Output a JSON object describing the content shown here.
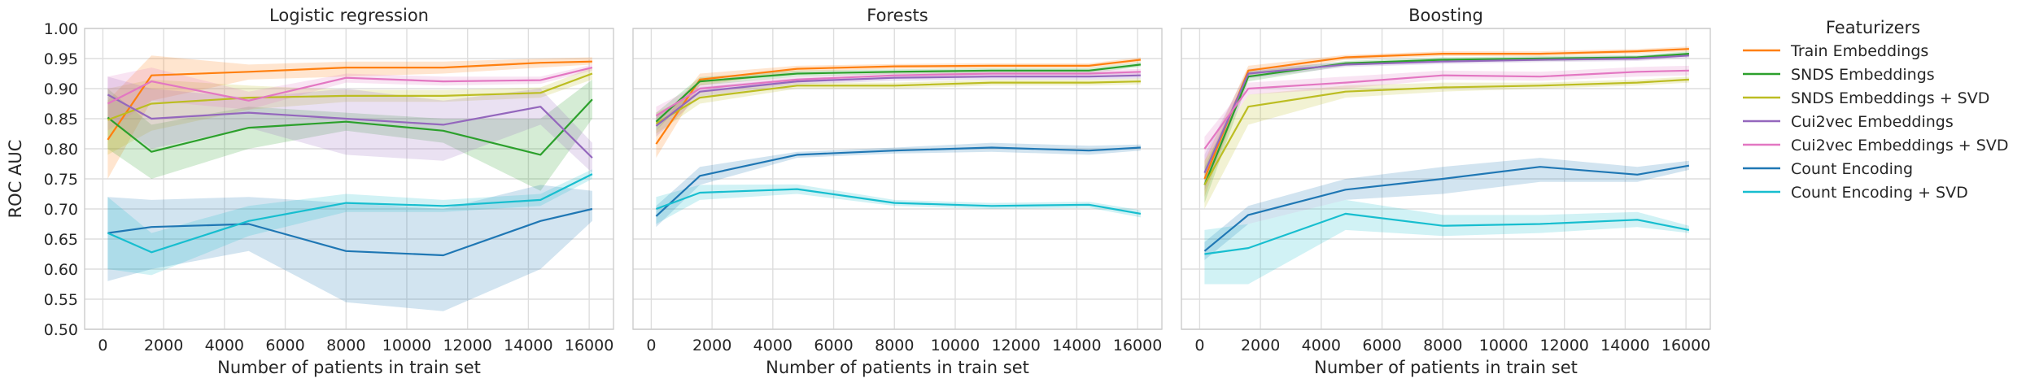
{
  "chart_data": {
    "type": "line",
    "ylabel": "ROC AUC",
    "ylim": [
      0.5,
      1.0
    ],
    "xlim": [
      -600,
      16800
    ],
    "xticks": [
      0,
      2000,
      4000,
      6000,
      8000,
      10000,
      12000,
      14000,
      16000
    ],
    "xtick_labels": [
      "0",
      "2000",
      "4000",
      "6000",
      "8000",
      "10000",
      "12000",
      "14000",
      "16000"
    ],
    "yticks": [
      0.5,
      0.55,
      0.6,
      0.65,
      0.7,
      0.75,
      0.8,
      0.85,
      0.9,
      0.95,
      1.0
    ],
    "ytick_labels": [
      "0.50",
      "0.55",
      "0.60",
      "0.65",
      "0.70",
      "0.75",
      "0.80",
      "0.85",
      "0.90",
      "0.95",
      "1.00"
    ],
    "grid": true,
    "legend": {
      "title": "Featurizers",
      "placement": "right outside",
      "entries": [
        {
          "name": "Train Embeddings",
          "color": "#ff7f0e"
        },
        {
          "name": "SNDS Embeddings",
          "color": "#2ca02c"
        },
        {
          "name": "SNDS Embeddings + SVD",
          "color": "#bcbd22"
        },
        {
          "name": "Cui2vec Embeddings",
          "color": "#9467bd"
        },
        {
          "name": "Cui2vec Embeddings + SVD",
          "color": "#e377c2"
        },
        {
          "name": "Count Encoding",
          "color": "#1f77b4"
        },
        {
          "name": "Count Encoding + SVD",
          "color": "#17becf"
        }
      ]
    },
    "panels": [
      {
        "title": "Logistic regression",
        "xlabel": "Number of patients in train set",
        "x": [
          160,
          1600,
          4800,
          8000,
          11200,
          14400,
          16100
        ],
        "series": [
          {
            "name": "Train Embeddings",
            "values": [
              0.815,
              0.922,
              0.928,
              0.935,
              0.935,
              0.943,
              0.945
            ],
            "lower": [
              0.75,
              0.88,
              0.915,
              0.92,
              0.925,
              0.935,
              0.94
            ],
            "upper": [
              0.88,
              0.955,
              0.94,
              0.945,
              0.945,
              0.95,
              0.952
            ]
          },
          {
            "name": "SNDS Embeddings",
            "values": [
              0.852,
              0.795,
              0.835,
              0.845,
              0.83,
              0.79,
              0.882
            ],
            "lower": [
              0.8,
              0.75,
              0.8,
              0.83,
              0.81,
              0.73,
              0.85
            ],
            "upper": [
              0.9,
              0.84,
              0.87,
              0.86,
              0.85,
              0.85,
              0.915
            ]
          },
          {
            "name": "SNDS Embeddings + SVD",
            "values": [
              0.848,
              0.875,
              0.885,
              0.888,
              0.888,
              0.893,
              0.925
            ],
            "lower": [
              0.79,
              0.83,
              0.865,
              0.878,
              0.878,
              0.885,
              0.915
            ],
            "upper": [
              0.9,
              0.915,
              0.905,
              0.898,
              0.898,
              0.902,
              0.935
            ]
          },
          {
            "name": "Cui2vec Embeddings",
            "values": [
              0.89,
              0.85,
              0.86,
              0.85,
              0.84,
              0.87,
              0.785
            ],
            "lower": [
              0.85,
              0.8,
              0.835,
              0.79,
              0.78,
              0.84,
              0.76
            ],
            "upper": [
              0.92,
              0.9,
              0.885,
              0.9,
              0.88,
              0.9,
              0.81
            ]
          },
          {
            "name": "Cui2vec Embeddings + SVD",
            "values": [
              0.875,
              0.912,
              0.88,
              0.918,
              0.912,
              0.914,
              0.935
            ],
            "lower": [
              0.83,
              0.88,
              0.865,
              0.91,
              0.905,
              0.908,
              0.93
            ],
            "upper": [
              0.92,
              0.935,
              0.895,
              0.925,
              0.92,
              0.92,
              0.94
            ]
          },
          {
            "name": "Count Encoding",
            "values": [
              0.66,
              0.67,
              0.675,
              0.63,
              0.623,
              0.68,
              0.7
            ],
            "lower": [
              0.58,
              0.6,
              0.63,
              0.545,
              0.53,
              0.6,
              0.68
            ],
            "upper": [
              0.72,
              0.715,
              0.72,
              0.71,
              0.7,
              0.74,
              0.73
            ]
          },
          {
            "name": "Count Encoding + SVD",
            "values": [
              0.66,
              0.628,
              0.68,
              0.71,
              0.705,
              0.715,
              0.758
            ],
            "lower": [
              0.6,
              0.59,
              0.655,
              0.695,
              0.695,
              0.705,
              0.75
            ],
            "upper": [
              0.72,
              0.66,
              0.705,
              0.725,
              0.715,
              0.725,
              0.766
            ]
          }
        ]
      },
      {
        "title": "Forests",
        "xlabel": "Number of patients in train set",
        "x": [
          160,
          1600,
          4800,
          8000,
          11200,
          14400,
          16100
        ],
        "series": [
          {
            "name": "Train Embeddings",
            "values": [
              0.808,
              0.915,
              0.933,
              0.937,
              0.938,
              0.938,
              0.948
            ],
            "lower": [
              0.785,
              0.905,
              0.928,
              0.933,
              0.934,
              0.934,
              0.944
            ],
            "upper": [
              0.83,
              0.925,
              0.938,
              0.941,
              0.942,
              0.942,
              0.952
            ]
          },
          {
            "name": "SNDS Embeddings",
            "values": [
              0.845,
              0.912,
              0.925,
              0.928,
              0.93,
              0.93,
              0.94
            ],
            "lower": [
              0.83,
              0.905,
              0.92,
              0.924,
              0.926,
              0.926,
              0.936
            ],
            "upper": [
              0.86,
              0.919,
              0.93,
              0.932,
              0.934,
              0.934,
              0.944
            ]
          },
          {
            "name": "SNDS Embeddings + SVD",
            "values": [
              0.842,
              0.885,
              0.905,
              0.905,
              0.91,
              0.91,
              0.912
            ],
            "lower": [
              0.825,
              0.875,
              0.9,
              0.9,
              0.905,
              0.905,
              0.907
            ],
            "upper": [
              0.86,
              0.895,
              0.91,
              0.91,
              0.915,
              0.915,
              0.917
            ]
          },
          {
            "name": "Cui2vec Embeddings",
            "values": [
              0.838,
              0.895,
              0.912,
              0.918,
              0.92,
              0.92,
              0.922
            ],
            "lower": [
              0.82,
              0.887,
              0.907,
              0.913,
              0.915,
              0.915,
              0.917
            ],
            "upper": [
              0.855,
              0.903,
              0.917,
              0.923,
              0.925,
              0.925,
              0.927
            ]
          },
          {
            "name": "Cui2vec Embeddings + SVD",
            "values": [
              0.855,
              0.9,
              0.915,
              0.922,
              0.925,
              0.925,
              0.928
            ],
            "lower": [
              0.84,
              0.893,
              0.91,
              0.917,
              0.92,
              0.92,
              0.923
            ],
            "upper": [
              0.87,
              0.907,
              0.92,
              0.927,
              0.93,
              0.93,
              0.933
            ]
          },
          {
            "name": "Count Encoding",
            "values": [
              0.688,
              0.755,
              0.79,
              0.797,
              0.802,
              0.797,
              0.802
            ],
            "lower": [
              0.67,
              0.74,
              0.785,
              0.792,
              0.795,
              0.79,
              0.797
            ],
            "upper": [
              0.705,
              0.77,
              0.795,
              0.802,
              0.81,
              0.805,
              0.807
            ]
          },
          {
            "name": "Count Encoding + SVD",
            "values": [
              0.7,
              0.727,
              0.733,
              0.71,
              0.705,
              0.707,
              0.692
            ],
            "lower": [
              0.675,
              0.715,
              0.725,
              0.705,
              0.7,
              0.702,
              0.686
            ],
            "upper": [
              0.72,
              0.74,
              0.741,
              0.715,
              0.71,
              0.712,
              0.698
            ]
          }
        ]
      },
      {
        "title": "Boosting",
        "xlabel": "Number of patients in train set",
        "x": [
          160,
          1600,
          4800,
          8000,
          11200,
          14400,
          16100
        ],
        "series": [
          {
            "name": "Train Embeddings",
            "values": [
              0.75,
              0.93,
              0.952,
              0.958,
              0.958,
              0.962,
              0.966
            ],
            "lower": [
              0.72,
              0.922,
              0.948,
              0.954,
              0.954,
              0.958,
              0.962
            ],
            "upper": [
              0.78,
              0.938,
              0.956,
              0.962,
              0.962,
              0.966,
              0.97
            ]
          },
          {
            "name": "SNDS Embeddings",
            "values": [
              0.74,
              0.92,
              0.942,
              0.948,
              0.95,
              0.952,
              0.958
            ],
            "lower": [
              0.71,
              0.912,
              0.938,
              0.944,
              0.946,
              0.948,
              0.954
            ],
            "upper": [
              0.77,
              0.928,
              0.946,
              0.952,
              0.954,
              0.956,
              0.962
            ]
          },
          {
            "name": "SNDS Embeddings + SVD",
            "values": [
              0.74,
              0.87,
              0.895,
              0.902,
              0.905,
              0.91,
              0.915
            ],
            "lower": [
              0.7,
              0.84,
              0.885,
              0.895,
              0.9,
              0.905,
              0.91
            ],
            "upper": [
              0.78,
              0.89,
              0.905,
              0.91,
              0.91,
              0.915,
              0.92
            ]
          },
          {
            "name": "Cui2vec Embeddings",
            "values": [
              0.76,
              0.925,
              0.94,
              0.945,
              0.948,
              0.95,
              0.955
            ],
            "lower": [
              0.73,
              0.917,
              0.936,
              0.941,
              0.944,
              0.946,
              0.951
            ],
            "upper": [
              0.79,
              0.933,
              0.944,
              0.949,
              0.952,
              0.954,
              0.959
            ]
          },
          {
            "name": "Cui2vec Embeddings + SVD",
            "values": [
              0.8,
              0.9,
              0.91,
              0.922,
              0.92,
              0.928,
              0.93
            ],
            "lower": [
              0.78,
              0.89,
              0.9,
              0.915,
              0.913,
              0.92,
              0.922
            ],
            "upper": [
              0.82,
              0.91,
              0.92,
              0.93,
              0.928,
              0.936,
              0.938
            ]
          },
          {
            "name": "Count Encoding",
            "values": [
              0.63,
              0.69,
              0.732,
              0.75,
              0.77,
              0.757,
              0.772
            ],
            "lower": [
              0.615,
              0.675,
              0.715,
              0.725,
              0.745,
              0.745,
              0.765
            ],
            "upper": [
              0.645,
              0.705,
              0.75,
              0.77,
              0.785,
              0.77,
              0.78
            ]
          },
          {
            "name": "Count Encoding + SVD",
            "values": [
              0.625,
              0.635,
              0.692,
              0.672,
              0.675,
              0.682,
              0.665
            ],
            "lower": [
              0.575,
              0.575,
              0.665,
              0.655,
              0.66,
              0.67,
              0.66
            ],
            "upper": [
              0.665,
              0.675,
              0.715,
              0.69,
              0.69,
              0.695,
              0.672
            ]
          }
        ]
      }
    ]
  }
}
